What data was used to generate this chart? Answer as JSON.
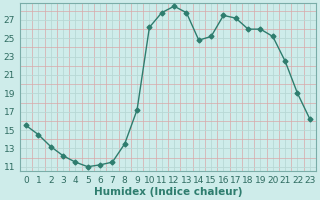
{
  "x": [
    0,
    1,
    2,
    3,
    4,
    5,
    6,
    7,
    8,
    9,
    10,
    11,
    12,
    13,
    14,
    15,
    16,
    17,
    18,
    19,
    20,
    21,
    22,
    23
  ],
  "y": [
    15.5,
    14.5,
    13.2,
    12.2,
    11.5,
    11.0,
    11.2,
    11.5,
    13.5,
    17.2,
    26.2,
    27.8,
    28.5,
    27.8,
    24.8,
    25.2,
    27.5,
    27.2,
    26.0,
    26.0,
    25.2,
    22.5,
    19.0,
    16.2
  ],
  "line_color": "#2e7d6e",
  "marker": "D",
  "marker_size": 2.5,
  "bg_color": "#ceecea",
  "xlabel": "Humidex (Indice chaleur)",
  "xlim": [
    -0.5,
    23.5
  ],
  "ylim": [
    10.5,
    28.8
  ],
  "yticks": [
    11,
    13,
    15,
    17,
    19,
    21,
    23,
    25,
    27
  ],
  "xticks": [
    0,
    1,
    2,
    3,
    4,
    5,
    6,
    7,
    8,
    9,
    10,
    11,
    12,
    13,
    14,
    15,
    16,
    17,
    18,
    19,
    20,
    21,
    22,
    23
  ],
  "xlabel_fontsize": 7.5,
  "tick_fontsize": 6.5,
  "line_width": 1.0,
  "major_grid_color": "#b8d8d5",
  "minor_grid_color": "#d9a8a8"
}
